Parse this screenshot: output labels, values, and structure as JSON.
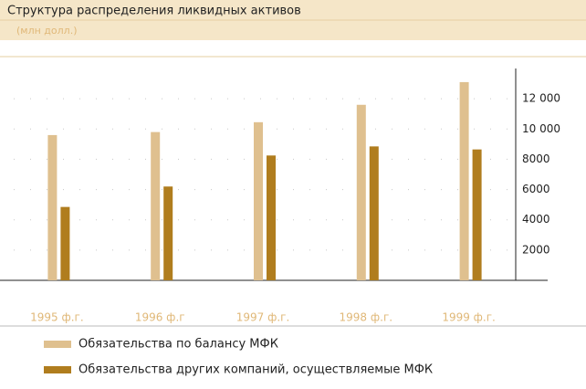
{
  "chart_data": {
    "type": "bar",
    "title": "Структура распределения ликвидных активов",
    "subtitle": "(млн долл.)",
    "categories": [
      "1995 ф.г.",
      "1996 ф.г",
      "1997 ф.г.",
      "1998 ф.г.",
      "1999 ф.г."
    ],
    "series": [
      {
        "name": "Обязательства по балансу МФК",
        "color": "#dfc08f",
        "values": [
          9600,
          9800,
          10450,
          11600,
          13100
        ]
      },
      {
        "name": "Обязательства других компаний, осуществляемые МФК",
        "color": "#b07d1e",
        "values": [
          4850,
          6200,
          8250,
          8850,
          8650
        ]
      }
    ],
    "ylim": [
      0,
      14000
    ],
    "yticks": [
      2000,
      4000,
      6000,
      8000,
      {
        "value": 10000,
        "label": "10 000"
      },
      {
        "value": 12000,
        "label": "12 000"
      }
    ],
    "grid": true
  }
}
